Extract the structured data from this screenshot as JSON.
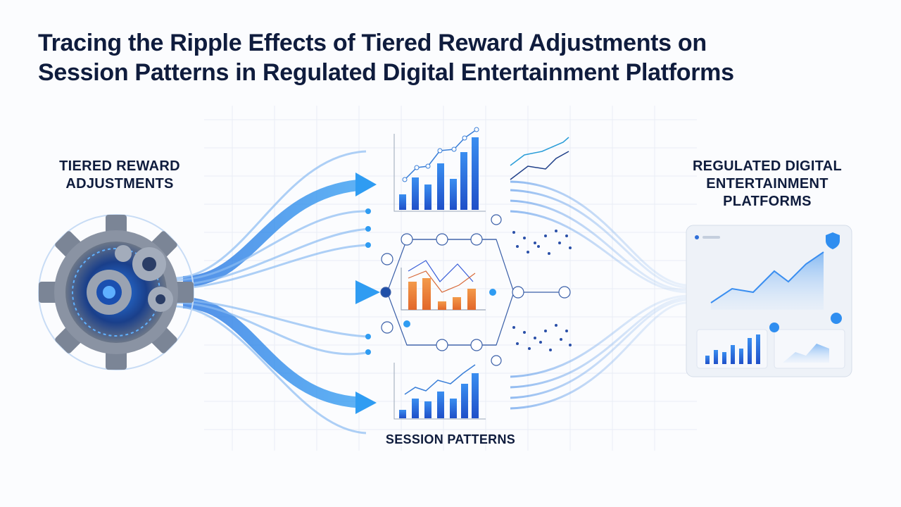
{
  "header": {
    "title_lines": [
      "Tracing the Ripple Effects of Tiered Reward Adjustments on",
      "Session Patterns in Regulated Digital Entertainment Platforms"
    ]
  },
  "nodes": [
    {
      "label_lines": [
        "TIERED REWARD",
        "ADJUSTMENTS"
      ]
    },
    {
      "label_lines": [
        "SESSION PATTERNS"
      ]
    },
    {
      "label_lines": [
        "REGULATED DIGITAL",
        "ENTERTAINMENT",
        "PLATFORMS"
      ]
    }
  ]
}
